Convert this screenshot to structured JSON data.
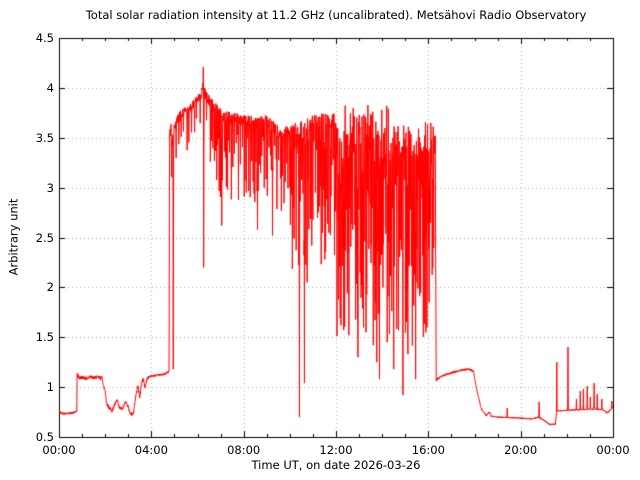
{
  "chart_data": {
    "type": "line",
    "title": "Total solar radiation intensity at 11.2 GHz (uncalibrated). Metsähovi Radio Observatory",
    "xlabel": "Time UT, on date 2026-03-26",
    "ylabel": "Arbitrary unit",
    "xlim_hours": [
      0,
      24
    ],
    "ylim": [
      0.5,
      4.5
    ],
    "grid": true,
    "legend": "none",
    "colors": {
      "line": "#ff0000",
      "grid": "#b4b4b4",
      "axis": "#000000",
      "background": "#ffffff",
      "text": "#000000"
    },
    "x_ticks": [
      {
        "t": 0,
        "label": "00:00"
      },
      {
        "t": 4,
        "label": "04:00"
      },
      {
        "t": 8,
        "label": "08:00"
      },
      {
        "t": 12,
        "label": "12:00"
      },
      {
        "t": 16,
        "label": "16:00"
      },
      {
        "t": 20,
        "label": "20:00"
      },
      {
        "t": 24,
        "label": "00:00"
      }
    ],
    "x_minor_tick_every_hours": 1,
    "y_ticks": [
      {
        "v": 0.5,
        "label": "0.5"
      },
      {
        "v": 1.0,
        "label": "1"
      },
      {
        "v": 1.5,
        "label": "1.5"
      },
      {
        "v": 2.0,
        "label": "2"
      },
      {
        "v": 2.5,
        "label": "2.5"
      },
      {
        "v": 3.0,
        "label": "3"
      },
      {
        "v": 3.5,
        "label": "3.5"
      },
      {
        "v": 4.0,
        "label": "4"
      },
      {
        "v": 4.5,
        "label": "4.5"
      }
    ],
    "series": [
      {
        "name": "total-solar-radiation-intensity",
        "envelope_anchors": [
          [
            0.0,
            0.77
          ],
          [
            0.08,
            0.74
          ],
          [
            0.3,
            0.735
          ],
          [
            0.55,
            0.74
          ],
          [
            0.72,
            0.75
          ],
          [
            0.77,
            0.76
          ],
          [
            0.79,
            1.12
          ],
          [
            0.9,
            1.09
          ],
          [
            1.05,
            1.1
          ],
          [
            1.2,
            1.08
          ],
          [
            1.35,
            1.11
          ],
          [
            1.5,
            1.09
          ],
          [
            1.65,
            1.1
          ],
          [
            1.8,
            1.09
          ],
          [
            1.87,
            1.1
          ],
          [
            1.92,
            1.01
          ],
          [
            2.0,
            0.97
          ],
          [
            2.06,
            0.84
          ],
          [
            2.15,
            0.8
          ],
          [
            2.3,
            0.76
          ],
          [
            2.42,
            0.83
          ],
          [
            2.52,
            0.87
          ],
          [
            2.62,
            0.79
          ],
          [
            2.75,
            0.78
          ],
          [
            2.88,
            0.86
          ],
          [
            3.0,
            0.8
          ],
          [
            3.1,
            0.73
          ],
          [
            3.22,
            0.73
          ],
          [
            3.32,
            0.9
          ],
          [
            3.42,
            1.02
          ],
          [
            3.5,
            0.89
          ],
          [
            3.58,
            1.05
          ],
          [
            3.66,
            1.08
          ],
          [
            3.72,
            0.99
          ],
          [
            3.82,
            1.09
          ],
          [
            3.95,
            1.11
          ],
          [
            4.3,
            1.12
          ],
          [
            4.6,
            1.13
          ],
          [
            4.72,
            1.15
          ],
          [
            4.77,
            1.16
          ],
          [
            4.79,
            3.55
          ],
          [
            4.85,
            3.62
          ],
          [
            4.9,
            3.48
          ],
          [
            4.97,
            3.6
          ],
          [
            5.05,
            3.66
          ],
          [
            5.2,
            3.73
          ],
          [
            5.5,
            3.8
          ],
          [
            5.8,
            3.85
          ],
          [
            6.0,
            3.9
          ],
          [
            6.15,
            3.96
          ],
          [
            6.22,
            4.02
          ],
          [
            6.28,
            4.0
          ],
          [
            6.4,
            3.93
          ],
          [
            6.6,
            3.88
          ],
          [
            6.8,
            3.82
          ],
          [
            7.1,
            3.76
          ],
          [
            7.5,
            3.73
          ],
          [
            8.0,
            3.71
          ],
          [
            8.5,
            3.69
          ],
          [
            9.0,
            3.7
          ],
          [
            9.35,
            3.63
          ],
          [
            9.65,
            3.58
          ],
          [
            9.95,
            3.61
          ],
          [
            10.3,
            3.63
          ],
          [
            10.7,
            3.66
          ],
          [
            11.0,
            3.7
          ],
          [
            11.35,
            3.72
          ],
          [
            11.7,
            3.7
          ],
          [
            12.0,
            3.73
          ],
          [
            12.3,
            3.79
          ],
          [
            12.6,
            3.83
          ],
          [
            12.95,
            3.86
          ],
          [
            13.3,
            3.84
          ],
          [
            13.6,
            3.83
          ],
          [
            13.9,
            3.81
          ],
          [
            14.15,
            3.79
          ],
          [
            14.4,
            3.74
          ],
          [
            14.6,
            3.63
          ],
          [
            14.8,
            3.56
          ],
          [
            15.0,
            3.61
          ],
          [
            15.2,
            3.56
          ],
          [
            15.38,
            3.44
          ],
          [
            15.52,
            3.56
          ],
          [
            15.7,
            3.61
          ],
          [
            15.95,
            3.63
          ],
          [
            16.15,
            3.61
          ],
          [
            16.3,
            3.58
          ],
          [
            16.34,
            1.07
          ],
          [
            16.5,
            1.1
          ],
          [
            16.8,
            1.13
          ],
          [
            17.1,
            1.15
          ],
          [
            17.45,
            1.17
          ],
          [
            17.75,
            1.18
          ],
          [
            17.95,
            1.16
          ],
          [
            18.1,
            0.97
          ],
          [
            18.3,
            0.78
          ],
          [
            18.5,
            0.715
          ],
          [
            18.65,
            0.75
          ],
          [
            18.72,
            0.71
          ],
          [
            19.0,
            0.7
          ],
          [
            19.5,
            0.695
          ],
          [
            20.0,
            0.69
          ],
          [
            20.5,
            0.68
          ],
          [
            20.75,
            0.7
          ],
          [
            21.0,
            0.67
          ],
          [
            21.25,
            0.625
          ],
          [
            21.5,
            0.63
          ],
          [
            21.56,
            0.76
          ],
          [
            21.8,
            0.765
          ],
          [
            22.2,
            0.77
          ],
          [
            22.7,
            0.775
          ],
          [
            23.2,
            0.78
          ],
          [
            23.55,
            0.775
          ],
          [
            23.75,
            0.74
          ],
          [
            23.85,
            0.765
          ],
          [
            23.95,
            0.78
          ],
          [
            24.0,
            0.8
          ]
        ],
        "noise_segments": [
          [
            0.0,
            0.77,
            0.02,
            0.5
          ],
          [
            0.77,
            1.9,
            0.035,
            0.5
          ],
          [
            1.9,
            3.9,
            0.03,
            0.5
          ],
          [
            3.9,
            4.77,
            0.02,
            0.5
          ],
          [
            4.79,
            6.5,
            0.1,
            0.75
          ],
          [
            6.5,
            9.0,
            0.12,
            0.8
          ],
          [
            9.0,
            12.0,
            0.14,
            0.8
          ],
          [
            12.0,
            12.6,
            0.2,
            0.85
          ],
          [
            12.6,
            14.5,
            0.55,
            0.92
          ],
          [
            14.5,
            16.32,
            0.3,
            0.88
          ],
          [
            16.34,
            17.95,
            0.02,
            0.5
          ],
          [
            17.95,
            24.01,
            0.012,
            0.5
          ]
        ],
        "down_spike_regions": [
          [
            4.79,
            6.5,
            0.12,
            0.1,
            0.45
          ],
          [
            6.5,
            10.0,
            0.06,
            0.15,
            0.9
          ],
          [
            10.0,
            12.0,
            0.045,
            0.2,
            1.5
          ],
          [
            12.0,
            14.5,
            0.026,
            0.2,
            2.3
          ],
          [
            14.5,
            16.25,
            0.032,
            0.2,
            2.2
          ]
        ],
        "major_down_spikes": [
          [
            4.95,
            1.18
          ],
          [
            6.27,
            2.2
          ],
          [
            7.05,
            2.62
          ],
          [
            8.12,
            2.95
          ],
          [
            8.6,
            2.58
          ],
          [
            9.25,
            2.52
          ],
          [
            10.12,
            2.45
          ],
          [
            10.42,
            0.7
          ],
          [
            10.63,
            1.04
          ],
          [
            10.75,
            2.05
          ],
          [
            11.2,
            2.7
          ],
          [
            11.52,
            2.28
          ],
          [
            12.22,
            1.62
          ],
          [
            12.56,
            1.52
          ],
          [
            12.95,
            1.3
          ],
          [
            13.3,
            1.55
          ],
          [
            13.62,
            1.42
          ],
          [
            13.77,
            1.25
          ],
          [
            13.88,
            1.08
          ],
          [
            14.22,
            1.45
          ],
          [
            14.5,
            1.18
          ],
          [
            14.9,
            0.92
          ],
          [
            15.12,
            1.33
          ],
          [
            15.45,
            1.08
          ],
          [
            15.82,
            2.15
          ],
          [
            16.05,
            2.45
          ]
        ],
        "up_spikes": [
          [
            0.79,
            1.14
          ],
          [
            6.25,
            4.21
          ],
          [
            19.42,
            0.79
          ],
          [
            20.8,
            0.85
          ],
          [
            21.57,
            1.25
          ],
          [
            22.05,
            1.4
          ],
          [
            22.42,
            0.88
          ],
          [
            22.58,
            0.96
          ],
          [
            22.72,
            0.98
          ],
          [
            22.88,
            1.01
          ],
          [
            23.02,
            0.9
          ],
          [
            23.18,
            1.04
          ],
          [
            23.32,
            0.93
          ],
          [
            23.52,
            0.88
          ],
          [
            23.95,
            0.86
          ]
        ],
        "seed": 42
      }
    ]
  }
}
